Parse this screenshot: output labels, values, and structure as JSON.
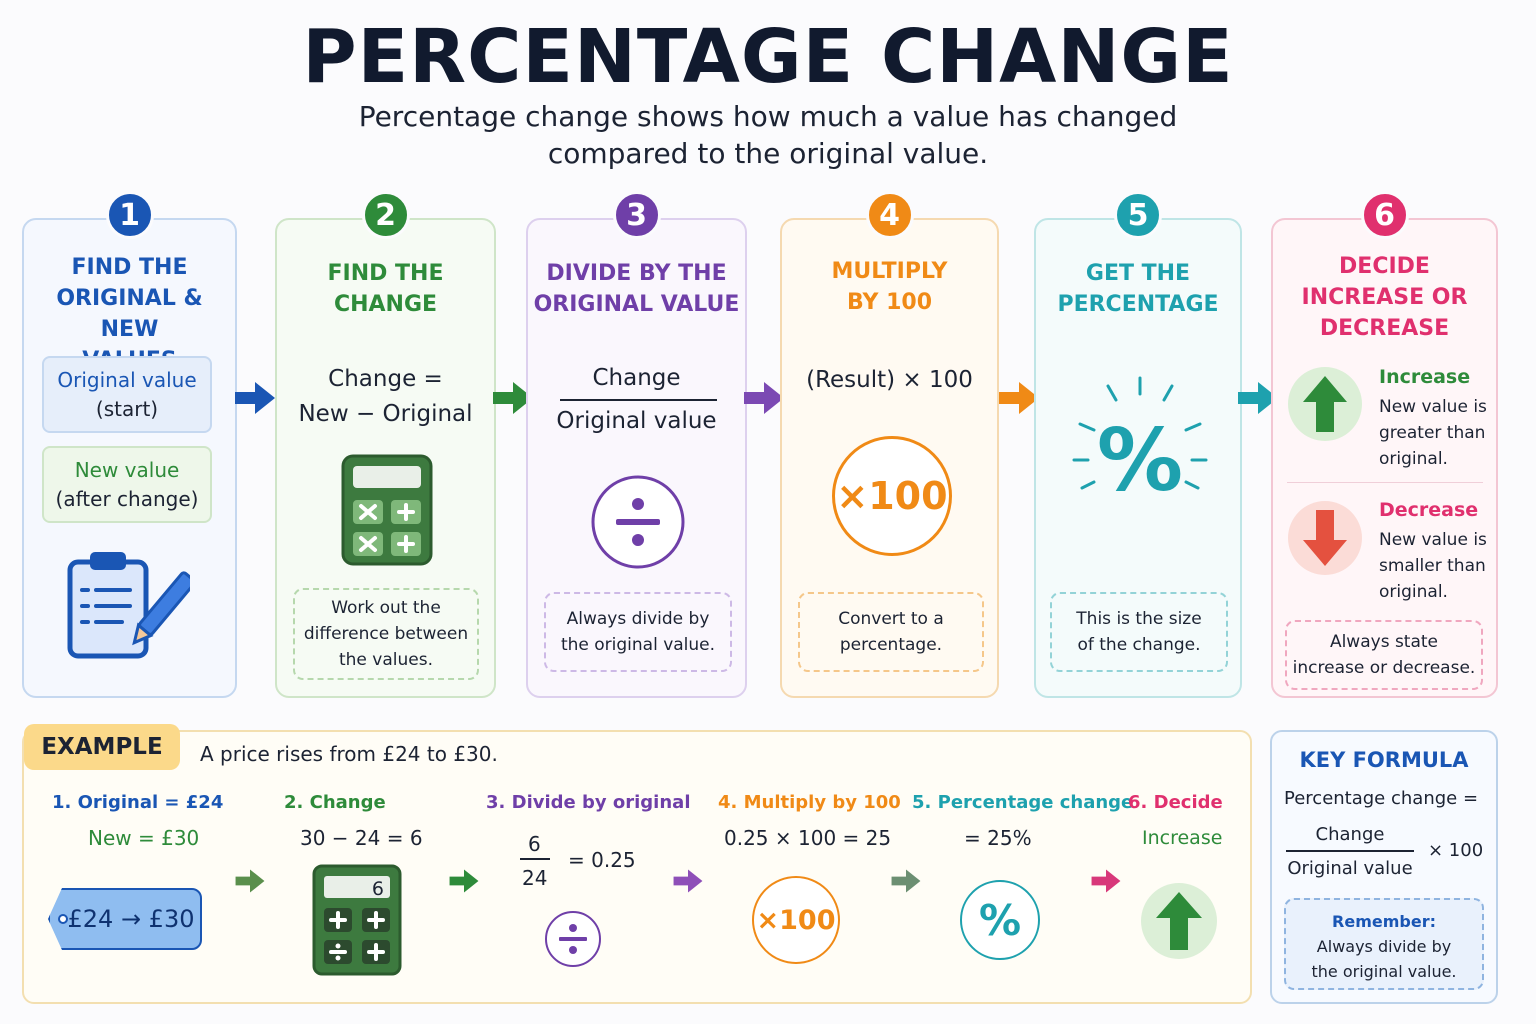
{
  "header": {
    "title": "PERCENTAGE CHANGE",
    "subtitle_line1": "Percentage change shows how much a value has changed",
    "subtitle_line2": "compared to the original value."
  },
  "colors": {
    "blue": "#1a56b4",
    "green": "#2e8b3a",
    "purple": "#6f3fa8",
    "orange": "#f08a16",
    "teal": "#1ea1ae",
    "pink": "#e0306e"
  },
  "steps": [
    {
      "number": "1",
      "title_lines": [
        "FIND THE",
        "ORIGINAL & NEW",
        "VALUES"
      ],
      "original_label": "Original value",
      "original_sub": "(start)",
      "new_label": "New value",
      "new_sub": "(after change)",
      "icon": "clipboard-pencil-icon"
    },
    {
      "number": "2",
      "title_lines": [
        "FIND THE",
        "CHANGE"
      ],
      "formula_line1": "Change =",
      "formula_line2": "New − Original",
      "icon": "calculator-icon",
      "note": [
        "Work out the",
        "difference between",
        "the values."
      ]
    },
    {
      "number": "3",
      "title_lines": [
        "DIVIDE BY THE",
        "ORIGINAL VALUE"
      ],
      "numerator": "Change",
      "denominator": "Original value",
      "icon": "divide-icon",
      "note": [
        "Always divide by",
        "the original value."
      ]
    },
    {
      "number": "4",
      "title_lines": [
        "MULTIPLY",
        "BY 100"
      ],
      "formula": "(Result) × 100",
      "icon_text": "×100",
      "note": [
        "Convert to a",
        "percentage."
      ]
    },
    {
      "number": "5",
      "title_lines": [
        "GET THE",
        "PERCENTAGE"
      ],
      "icon": "percent-icon",
      "note": [
        "This is the size",
        "of the change."
      ]
    },
    {
      "number": "6",
      "title_lines": [
        "DECIDE",
        "INCREASE OR",
        "DECREASE"
      ],
      "increase_label": "Increase",
      "increase_text": [
        "New value is",
        "greater than",
        "original."
      ],
      "decrease_label": "Decrease",
      "decrease_text": [
        "New value is",
        "smaller than",
        "original."
      ],
      "note": [
        "Always state",
        "increase or decrease."
      ]
    }
  ],
  "example": {
    "tag": "EXAMPLE",
    "description": "A price rises from £24 to £30.",
    "s1_head": "1.  Original = £24",
    "s1_line": "New = £30",
    "s1_tag": "£24 → £30",
    "s2_head": "2.  Change",
    "s2_line": "30 − 24 = 6",
    "s2_display": "6",
    "s3_head": "3. Divide by original",
    "s3_num": "6",
    "s3_den": "24",
    "s3_result": "= 0.25",
    "s4_head": "4.  Multiply by 100",
    "s4_line": "0.25 × 100 = 25",
    "s4_icon_text": "×100",
    "s5_head": "5.  Percentage change",
    "s5_line": "= 25%",
    "s6_head": "6. Decide",
    "s6_line": "Increase"
  },
  "key_formula": {
    "title": "KEY FORMULA",
    "label": "Percentage change =",
    "numerator": "Change",
    "denominator": "Original value",
    "times": "× 100",
    "remember_title": "Remember:",
    "remember_lines": [
      "Always divide by",
      "the original value."
    ]
  }
}
